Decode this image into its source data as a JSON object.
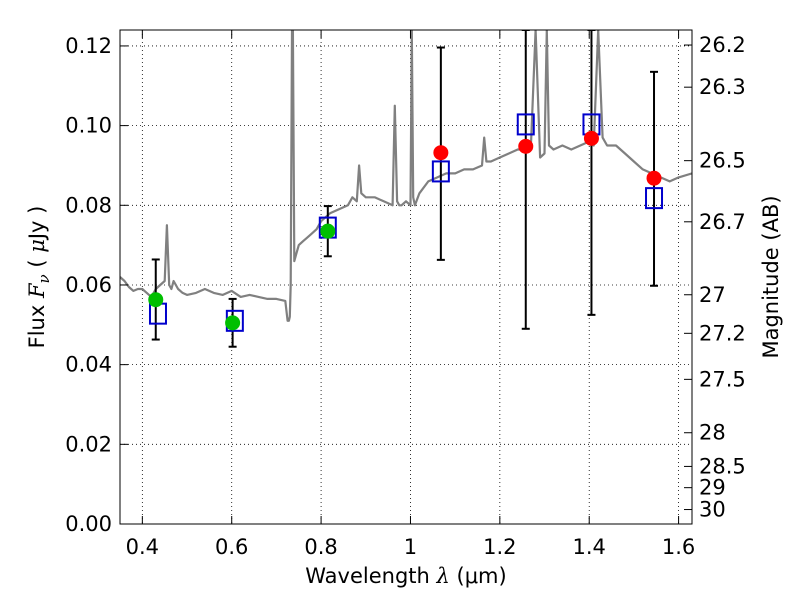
{
  "chart_data": {
    "type": "scatter",
    "title": "",
    "xlabel": "Wavelength  λ (μm)",
    "ylabel": "Flux  F_ν  ( μJy )",
    "ylabel_parts": {
      "prefix": "Flux  ",
      "symbol": "F",
      "subscript": "ν",
      "paren_open": "  ( ",
      "unit_mu": "μ",
      "unit_rest": "Jy )"
    },
    "xlabel_parts": {
      "prefix": "Wavelength  ",
      "symbol": "λ",
      "unit": " (μm)"
    },
    "y2label": "Magnitude (AB)",
    "xlim": [
      0.35,
      1.63
    ],
    "ylim": [
      0.0,
      0.124
    ],
    "grid": true,
    "colors": {
      "spectrum": "#808080",
      "green": "#00bf00",
      "red": "#ff0000",
      "model_box": "#0000cc",
      "errorbar": "#000000"
    },
    "x_ticks": [
      {
        "value": 0.4,
        "label": "0.4"
      },
      {
        "value": 0.6,
        "label": "0.6"
      },
      {
        "value": 0.8,
        "label": "0.8"
      },
      {
        "value": 1.0,
        "label": "1"
      },
      {
        "value": 1.2,
        "label": "1.2"
      },
      {
        "value": 1.4,
        "label": "1.4"
      },
      {
        "value": 1.6,
        "label": "1.6"
      }
    ],
    "y_ticks": [
      {
        "value": 0.0,
        "label": "0.00"
      },
      {
        "value": 0.02,
        "label": "0.02"
      },
      {
        "value": 0.04,
        "label": "0.04"
      },
      {
        "value": 0.06,
        "label": "0.06"
      },
      {
        "value": 0.08,
        "label": "0.08"
      },
      {
        "value": 0.1,
        "label": "0.10"
      },
      {
        "value": 0.12,
        "label": "0.12"
      }
    ],
    "mag_ticks": [
      "26.2",
      "26.3",
      "26.5",
      "26.7",
      "27",
      "27.2",
      "27.5",
      "28",
      "28.5",
      "29",
      "30"
    ],
    "observed_points": [
      {
        "x": 0.43,
        "y": 0.0563,
        "yerr_lo": 0.0463,
        "yerr_hi": 0.0664,
        "color": "green"
      },
      {
        "x": 0.602,
        "y": 0.0505,
        "yerr_lo": 0.0445,
        "yerr_hi": 0.0565,
        "color": "green"
      },
      {
        "x": 0.815,
        "y": 0.0735,
        "yerr_lo": 0.0672,
        "yerr_hi": 0.0798,
        "color": "green"
      },
      {
        "x": 1.068,
        "y": 0.0932,
        "yerr_lo": 0.0663,
        "yerr_hi": 0.1196,
        "color": "red"
      },
      {
        "x": 1.258,
        "y": 0.0948,
        "yerr_lo": 0.049,
        "yerr_hi": 0.124,
        "color": "red"
      },
      {
        "x": 1.405,
        "y": 0.0968,
        "yerr_lo": 0.0525,
        "yerr_hi": 0.124,
        "color": "red"
      },
      {
        "x": 1.545,
        "y": 0.0868,
        "yerr_lo": 0.0598,
        "yerr_hi": 0.1135,
        "color": "red"
      }
    ],
    "model_points": [
      {
        "x": 0.435,
        "y": 0.0528
      },
      {
        "x": 0.607,
        "y": 0.051
      },
      {
        "x": 0.815,
        "y": 0.0744
      },
      {
        "x": 1.068,
        "y": 0.0885
      },
      {
        "x": 1.258,
        "y": 0.1003
      },
      {
        "x": 1.405,
        "y": 0.1003
      },
      {
        "x": 1.545,
        "y": 0.0818
      }
    ],
    "spectrum": {
      "x": [
        0.35,
        0.36,
        0.37,
        0.38,
        0.39,
        0.4,
        0.41,
        0.42,
        0.43,
        0.44,
        0.45,
        0.455,
        0.46,
        0.465,
        0.47,
        0.48,
        0.49,
        0.5,
        0.52,
        0.54,
        0.56,
        0.58,
        0.6,
        0.62,
        0.64,
        0.66,
        0.68,
        0.7,
        0.72,
        0.725,
        0.728,
        0.73,
        0.732,
        0.735,
        0.737,
        0.74,
        0.745,
        0.75,
        0.76,
        0.77,
        0.78,
        0.79,
        0.8,
        0.82,
        0.84,
        0.86,
        0.87,
        0.88,
        0.885,
        0.89,
        0.9,
        0.92,
        0.94,
        0.96,
        0.965,
        0.97,
        0.975,
        0.98,
        0.99,
        1.0,
        1.003,
        1.006,
        1.01,
        1.02,
        1.04,
        1.06,
        1.08,
        1.1,
        1.12,
        1.14,
        1.16,
        1.165,
        1.17,
        1.18,
        1.2,
        1.22,
        1.24,
        1.25,
        1.26,
        1.27,
        1.28,
        1.29,
        1.3,
        1.305,
        1.31,
        1.32,
        1.34,
        1.36,
        1.38,
        1.4,
        1.41,
        1.42,
        1.43,
        1.44,
        1.46,
        1.48,
        1.5,
        1.52,
        1.54,
        1.56,
        1.58,
        1.6,
        1.63
      ],
      "y": [
        0.062,
        0.061,
        0.0595,
        0.0585,
        0.059,
        0.059,
        0.058,
        0.057,
        0.059,
        0.06,
        0.061,
        0.075,
        0.06,
        0.059,
        0.061,
        0.059,
        0.058,
        0.0575,
        0.058,
        0.059,
        0.058,
        0.0575,
        0.0585,
        0.057,
        0.0575,
        0.057,
        0.0565,
        0.0565,
        0.056,
        0.051,
        0.051,
        0.052,
        0.06,
        0.124,
        0.124,
        0.066,
        0.068,
        0.07,
        0.071,
        0.072,
        0.073,
        0.074,
        0.076,
        0.078,
        0.079,
        0.08,
        0.082,
        0.081,
        0.09,
        0.083,
        0.082,
        0.082,
        0.081,
        0.08,
        0.105,
        0.081,
        0.08,
        0.08,
        0.081,
        0.08,
        0.124,
        0.082,
        0.08,
        0.083,
        0.086,
        0.087,
        0.088,
        0.088,
        0.089,
        0.089,
        0.09,
        0.097,
        0.091,
        0.091,
        0.092,
        0.093,
        0.094,
        0.094,
        0.095,
        0.096,
        0.124,
        0.092,
        0.093,
        0.124,
        0.095,
        0.094,
        0.095,
        0.094,
        0.095,
        0.096,
        0.095,
        0.124,
        0.097,
        0.095,
        0.095,
        0.093,
        0.091,
        0.089,
        0.088,
        0.087,
        0.086,
        0.087,
        0.088
      ]
    }
  }
}
